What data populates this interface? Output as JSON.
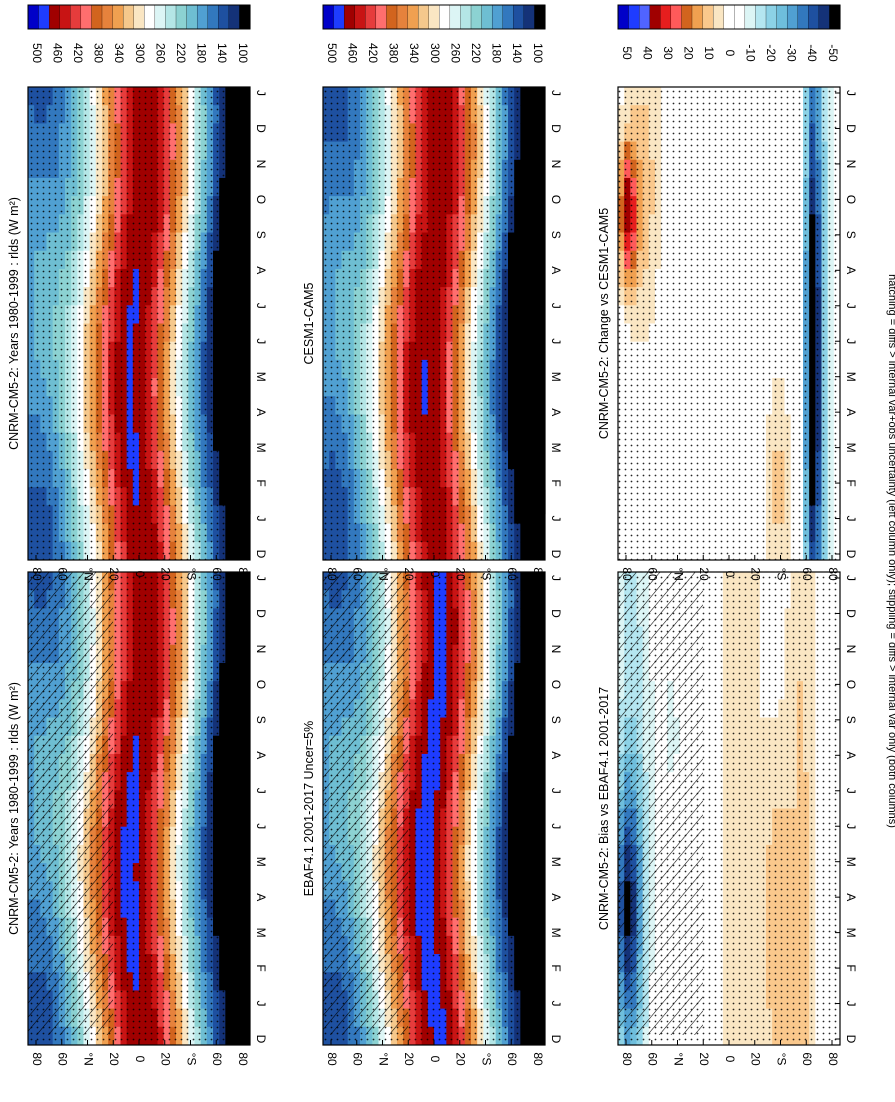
{
  "figure": {
    "footnote": "hatching = diffs > internal var+obs uncertainty (left column only); stippling = diffs > internal var only (both columns)"
  },
  "chart_data": [
    {
      "type": "heatmap",
      "title": "CNRM-CM5-2: Years 1980-1999 : rlds (W m²)",
      "x": [
        "J",
        "F",
        "M",
        "A",
        "M",
        "J",
        "J",
        "A",
        "S",
        "O",
        "N",
        "D",
        "J"
      ],
      "x_edge_left": "D",
      "y_ticks": [
        "80",
        "60",
        "°N",
        "20",
        "0",
        "20",
        "°S",
        "60",
        "80"
      ],
      "y_values": [
        80,
        60,
        40,
        20,
        0,
        -20,
        -40,
        -60,
        -80
      ],
      "ylim": [
        -90,
        90
      ],
      "colorbar_labels": [
        "500",
        "460",
        "420",
        "380",
        "340",
        "300",
        "260",
        "220",
        "180",
        "140",
        "100"
      ],
      "levels": [
        520,
        100
      ],
      "hatched": true,
      "stippled": true
    },
    {
      "type": "heatmap",
      "title": "CNRM-CM5-2: Years 1980-1999 : rlds (W m²)",
      "x": [
        "J",
        "F",
        "M",
        "A",
        "M",
        "J",
        "J",
        "A",
        "S",
        "O",
        "N",
        "D",
        "J"
      ],
      "x_edge_left": "D",
      "y_ticks": [
        "80",
        "60",
        "°N",
        "20",
        "0",
        "20",
        "°S",
        "60",
        "80"
      ],
      "y_values": [
        80,
        60,
        40,
        20,
        0,
        -20,
        -40,
        -60,
        -80
      ],
      "ylim": [
        -90,
        90
      ],
      "colorbar_labels": [
        "500",
        "460",
        "420",
        "380",
        "340",
        "300",
        "260",
        "220",
        "180",
        "140",
        "100"
      ],
      "levels": [
        520,
        100
      ],
      "hatched": false,
      "stippled": true
    },
    {
      "type": "heatmap",
      "title": "EBAF4.1 2001-2017 Uncer=5%",
      "x": [
        "J",
        "F",
        "M",
        "A",
        "M",
        "J",
        "J",
        "A",
        "S",
        "O",
        "N",
        "D",
        "J"
      ],
      "x_edge_left": "D",
      "y_ticks": [
        "80",
        "60",
        "°N",
        "20",
        "0",
        "20",
        "°S",
        "60",
        "80"
      ],
      "y_values": [
        80,
        60,
        40,
        20,
        0,
        -20,
        -40,
        -60,
        -80
      ],
      "ylim": [
        -90,
        90
      ],
      "colorbar_labels": [
        "500",
        "460",
        "420",
        "380",
        "340",
        "300",
        "260",
        "220",
        "180",
        "140",
        "100"
      ],
      "levels": [
        520,
        100
      ],
      "hatched": true,
      "stippled": true
    },
    {
      "type": "heatmap",
      "title": "CESM1-CAM5",
      "x": [
        "J",
        "F",
        "M",
        "A",
        "M",
        "J",
        "J",
        "A",
        "S",
        "O",
        "N",
        "D",
        "J"
      ],
      "x_edge_left": "D",
      "y_ticks": [
        "80",
        "60",
        "°N",
        "20",
        "0",
        "20",
        "°S",
        "60",
        "80"
      ],
      "y_values": [
        80,
        60,
        40,
        20,
        0,
        -20,
        -40,
        -60,
        -80
      ],
      "ylim": [
        -90,
        90
      ],
      "colorbar_labels": [
        "500",
        "460",
        "420",
        "380",
        "340",
        "300",
        "260",
        "220",
        "180",
        "140",
        "100"
      ],
      "levels": [
        520,
        100
      ],
      "hatched": false,
      "stippled": true
    },
    {
      "type": "heatmap",
      "title": "CNRM-CM5-2: Bias vs EBAF4.1 2001-2017",
      "x": [
        "J",
        "F",
        "M",
        "A",
        "M",
        "J",
        "J",
        "A",
        "S",
        "O",
        "N",
        "D",
        "J"
      ],
      "x_edge_left": "D",
      "y_ticks": [
        "80",
        "60",
        "°N",
        "20",
        "0",
        "20",
        "°S",
        "60",
        "80"
      ],
      "y_values": [
        80,
        60,
        40,
        20,
        0,
        -20,
        -40,
        -60,
        -80
      ],
      "ylim": [
        -90,
        90
      ],
      "colorbar_labels": [
        "50",
        "40",
        "30",
        "20",
        "10",
        "0",
        "-10",
        "-20",
        "-30",
        "-40",
        "-50"
      ],
      "levels": [
        55,
        -55
      ],
      "hatched": true,
      "stippled": true
    },
    {
      "type": "heatmap",
      "title": "CNRM-CM5-2: Change vs CESM1-CAM5",
      "x": [
        "J",
        "F",
        "M",
        "A",
        "M",
        "J",
        "J",
        "A",
        "S",
        "O",
        "N",
        "D",
        "J"
      ],
      "x_edge_left": "D",
      "y_ticks": [
        "80",
        "60",
        "°N",
        "20",
        "0",
        "20",
        "°S",
        "60",
        "80"
      ],
      "y_values": [
        80,
        60,
        40,
        20,
        0,
        -20,
        -40,
        -60,
        -80
      ],
      "ylim": [
        -90,
        90
      ],
      "colorbar_labels": [
        "50",
        "40",
        "30",
        "20",
        "10",
        "0",
        "-10",
        "-20",
        "-30",
        "-40",
        "-50"
      ],
      "levels": [
        55,
        -55
      ],
      "hatched": false,
      "stippled": true
    }
  ]
}
